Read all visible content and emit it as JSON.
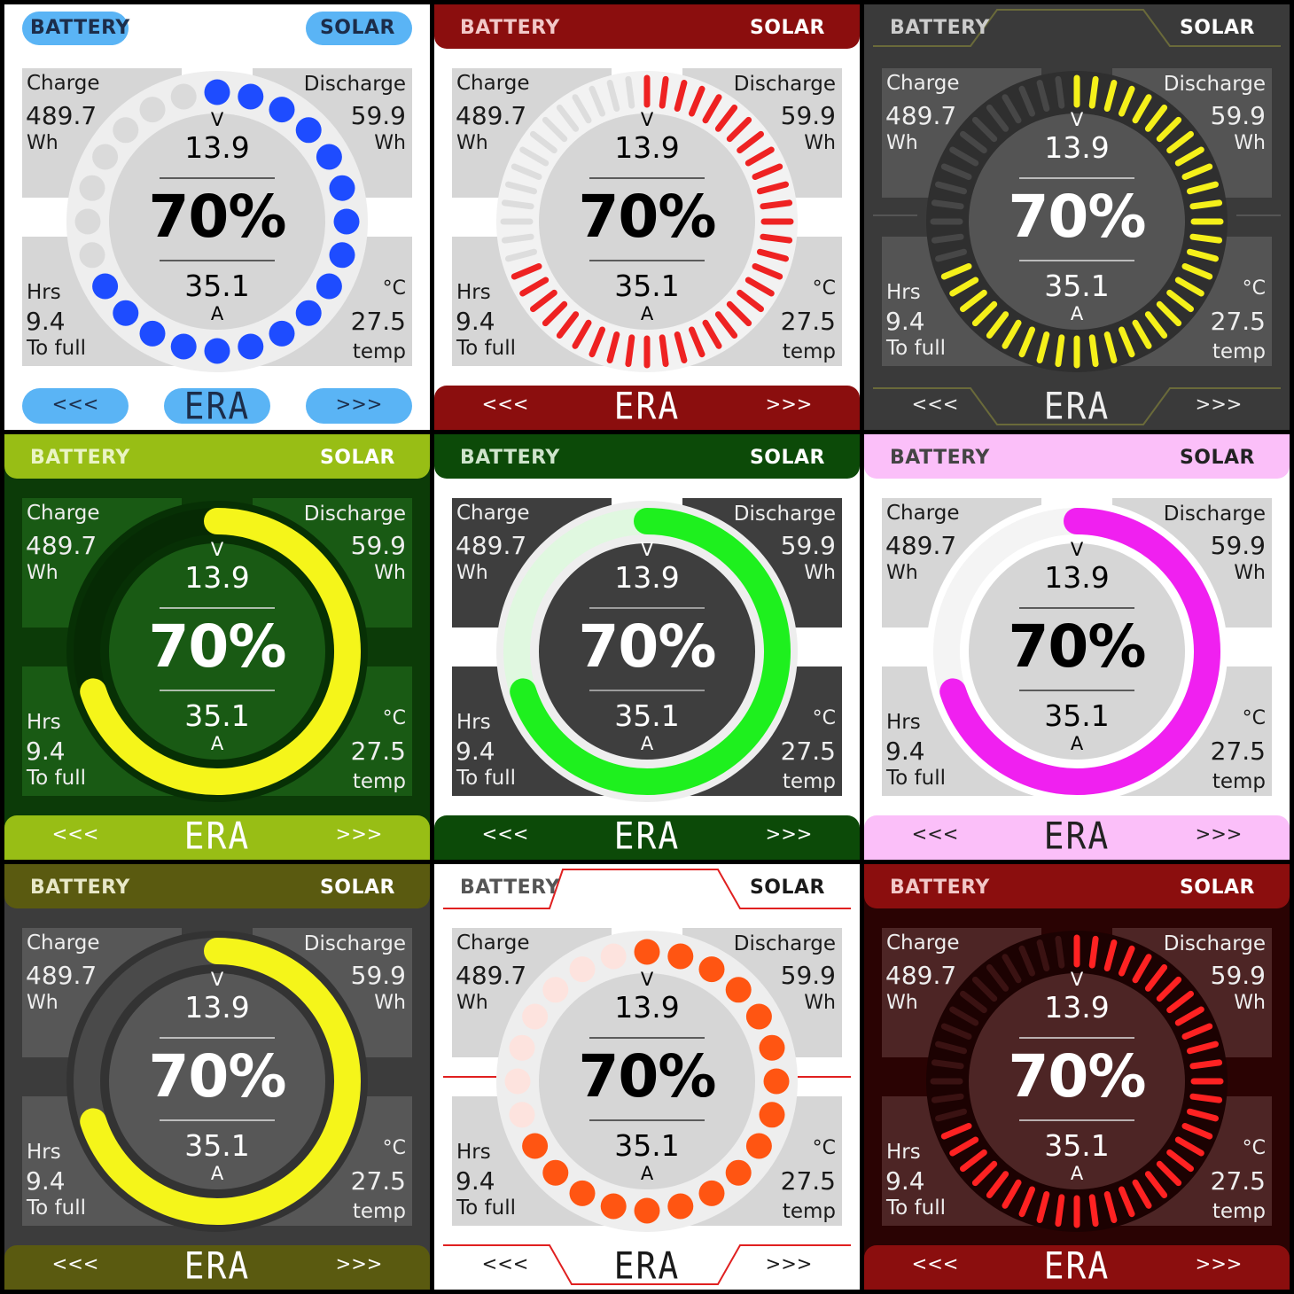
{
  "labels": {
    "battery": "BATTERY",
    "solar": "SOLAR",
    "charge": "Charge",
    "discharge": "Discharge",
    "hrs": "Hrs",
    "to_full": "To full",
    "temp_unit": "°C",
    "temp": "temp",
    "wh": "Wh",
    "volt_unit": "V",
    "amp_unit": "A",
    "prev": "<<<",
    "next": ">>>",
    "logo": "ERA"
  },
  "values": {
    "charge_wh": "489.7",
    "discharge_wh": "59.9",
    "hours": "9.4",
    "temperature": "27.5",
    "voltage": "13.9",
    "percent_text": "70%",
    "current": "35.1",
    "state_of_charge": 0.7
  },
  "themes": [
    {
      "gauge": "dots",
      "bg": "#ffffff",
      "header": "#5ab4f5",
      "hdrText": "#1c2d4a",
      "panel": "#d6d6d6",
      "ring": "#eeeeee",
      "inner": "#d6d6d6",
      "active": "#1e4cff",
      "inactive": "#dadada",
      "text": "#1a1a1a",
      "centerText": "#000000",
      "line": "#333333",
      "frame": "pills",
      "sep": "#ffffff"
    },
    {
      "gauge": "ticks",
      "bg": "#ffffff",
      "header": "#8b0e0e",
      "hdrText": "#ffffff",
      "hdrText1": "#f2c8c8",
      "panel": "#d6d6d6",
      "ring": "#f2f2f2",
      "inner": "#d6d6d6",
      "active": "#ee2222",
      "inactive": "#dddddd",
      "text": "#1a1a1a",
      "centerText": "#000000",
      "line": "#333333",
      "frame": "bars",
      "sep": "#ffffff"
    },
    {
      "gauge": "ticks",
      "bg": "#3a3a3a",
      "header": "#3a3a3a",
      "hdrText": "#ffffff",
      "hdrText1": "#cccccc",
      "panel": "#545454",
      "ring": "#2f2f2f",
      "inner": "#545454",
      "active": "#f5f01a",
      "inactive": "#474747",
      "text": "#eeeeee",
      "centerText": "#ffffff",
      "line": "#dddddd",
      "frame": "tech",
      "sep": "#3a3a3a"
    },
    {
      "gauge": "arc",
      "bg": "#0c3b08",
      "header": "#98be15",
      "hdrText": "#ffffff",
      "hdrText1": "#eaf4c4",
      "panel": "#195a14",
      "ring": "#073005",
      "inner": "#195a14",
      "active": "#f5f51a",
      "inactive": "#062a04",
      "text": "#eeeeee",
      "centerText": "#ffffff",
      "line": "#dddddd",
      "frame": "bars",
      "sep": "#0c3b08"
    },
    {
      "gauge": "arc",
      "bg": "#ffffff",
      "header": "#0c4a08",
      "hdrText": "#ffffff",
      "hdrText1": "#cfe4cc",
      "panel": "#3e3e3e",
      "ring": "#eeeeee",
      "inner": "#3e3e3e",
      "active": "#1ef01e",
      "inactive": "#e0f8e0",
      "text": "#eeeeee",
      "centerText": "#ffffff",
      "line": "#bbbbbb",
      "frame": "bars",
      "sep": "#ffffff"
    },
    {
      "gauge": "arc",
      "bg": "#ffffff",
      "header": "#fbbff9",
      "hdrText": "#222222",
      "hdrText1": "#444444",
      "panel": "#d6d6d6",
      "ring": "#ffffff",
      "inner": "#d6d6d6",
      "active": "#f020f0",
      "inactive": "#f4f4f4",
      "text": "#1a1a1a",
      "centerText": "#000000",
      "line": "#333333",
      "frame": "bars",
      "sep": "#ffffff"
    },
    {
      "gauge": "arc",
      "bg": "#3c3c3c",
      "header": "#5a5a10",
      "hdrText": "#ffffff",
      "hdrText1": "#e8e8c8",
      "panel": "#575757",
      "ring": "#333333",
      "inner": "#575757",
      "active": "#f5f51a",
      "inactive": "#4a4a4a",
      "text": "#eeeeee",
      "centerText": "#ffffff",
      "line": "#dddddd",
      "frame": "bars",
      "sep": "#3c3c3c"
    },
    {
      "gauge": "dots",
      "bg": "#ffffff",
      "header": "#ffffff",
      "hdrText": "#1a1a1a",
      "hdrText1": "#555555",
      "panel": "#d6d6d6",
      "ring": "#eeeeee",
      "inner": "#d6d6d6",
      "active": "#ff5512",
      "inactive": "#fde3de",
      "text": "#1a1a1a",
      "centerText": "#000000",
      "line": "#333333",
      "frame": "techred",
      "sep": "#ffffff"
    },
    {
      "gauge": "ticks",
      "bg": "#2a0303",
      "header": "#8b0e0e",
      "hdrText": "#ffffff",
      "hdrText1": "#f2c8c8",
      "panel": "#4d2525",
      "ring": "#1c0202",
      "inner": "#4d2525",
      "active": "#ff2222",
      "inactive": "#3a1212",
      "text": "#eeeeee",
      "centerText": "#ffffff",
      "line": "#dddddd",
      "frame": "bars",
      "sep": "#2a0303"
    }
  ]
}
